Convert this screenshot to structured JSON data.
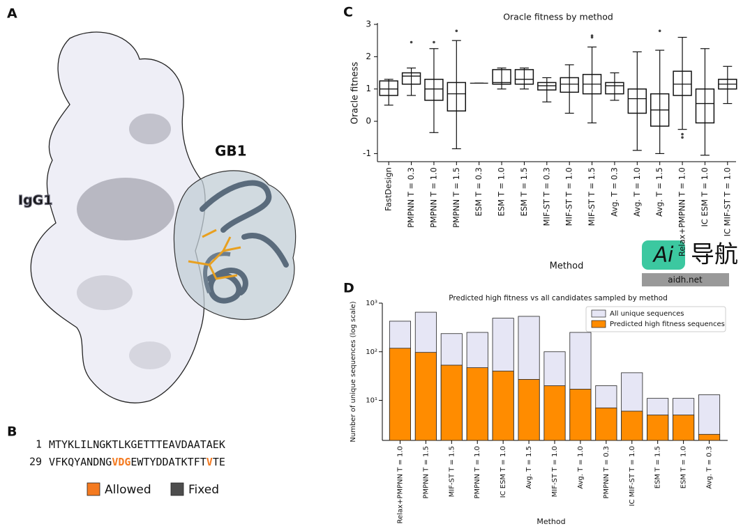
{
  "panel_letters": [
    "A",
    "B",
    "C",
    "D"
  ],
  "panel_a": {
    "labels": [
      "IgG1",
      "GB1"
    ]
  },
  "panel_b": {
    "lines": [
      {
        "number": 1,
        "segments": [
          {
            "text": "MTYKLILNGKTLKGETTTEAVDAATAEK",
            "allowed": false
          }
        ]
      },
      {
        "number": 29,
        "segments": [
          {
            "text": "VFKQYANDNG",
            "allowed": false
          },
          {
            "text": "VDG",
            "allowed": true
          },
          {
            "text": "EWTYDDATKTFT",
            "allowed": false
          },
          {
            "text": "V",
            "allowed": true
          },
          {
            "text": "TE",
            "allowed": false
          }
        ]
      }
    ],
    "legend": [
      {
        "name": "Allowed",
        "color": "#f47a20"
      },
      {
        "name": "Fixed",
        "color": "#4d4d4d"
      }
    ]
  },
  "watermark": {
    "logo": "Ai",
    "text": "导航",
    "url": "aidh.net"
  },
  "chart_data": [
    {
      "type": "box",
      "title": "Oracle fitness by method",
      "xlabel": "Method",
      "ylabel": "Oracle fitness",
      "categories": [
        "FastDesign",
        "PMPNN T = 0.3",
        "PMPNN T = 1.0",
        "PMPNN T = 1.5",
        "ESM T = 0.3",
        "ESM T = 1.0",
        "ESM T = 1.5",
        "MIF-ST T = 0.3",
        "MIF-ST T = 1.0",
        "MIF-ST T = 1.5",
        "Avg. T = 0.3",
        "Avg. T = 1.0",
        "Avg. T = 1.5",
        "Relax+PMPNN T = 1.0",
        "IC ESM T = 1.0",
        "IC MIF-ST T = 1.0"
      ],
      "boxes": [
        {
          "min": 0.5,
          "q1": 0.8,
          "median": 1.0,
          "q3": 1.25,
          "max": 1.3,
          "outliers": []
        },
        {
          "min": 0.8,
          "q1": 1.15,
          "median": 1.4,
          "q3": 1.5,
          "max": 1.65,
          "outliers": [
            2.45
          ]
        },
        {
          "min": -0.35,
          "q1": 0.65,
          "median": 1.0,
          "q3": 1.3,
          "max": 2.25,
          "outliers": [
            2.45
          ]
        },
        {
          "min": -0.85,
          "q1": 0.32,
          "median": 0.85,
          "q3": 1.2,
          "max": 2.5,
          "outliers": [
            2.8
          ]
        },
        {
          "min": 1.18,
          "q1": 1.18,
          "median": 1.18,
          "q3": 1.18,
          "max": 1.18,
          "outliers": []
        },
        {
          "min": 1.0,
          "q1": 1.15,
          "median": 1.2,
          "q3": 1.6,
          "max": 1.65,
          "outliers": []
        },
        {
          "min": 1.0,
          "q1": 1.15,
          "median": 1.3,
          "q3": 1.6,
          "max": 1.65,
          "outliers": []
        },
        {
          "min": 0.6,
          "q1": 0.97,
          "median": 1.1,
          "q3": 1.2,
          "max": 1.35,
          "outliers": []
        },
        {
          "min": 0.25,
          "q1": 0.9,
          "median": 1.15,
          "q3": 1.35,
          "max": 1.75,
          "outliers": []
        },
        {
          "min": -0.05,
          "q1": 0.85,
          "median": 1.15,
          "q3": 1.45,
          "max": 2.3,
          "outliers": [
            2.6,
            2.65
          ]
        },
        {
          "min": 0.65,
          "q1": 0.85,
          "median": 1.1,
          "q3": 1.2,
          "max": 1.5,
          "outliers": []
        },
        {
          "min": -0.9,
          "q1": 0.25,
          "median": 0.7,
          "q3": 1.0,
          "max": 2.15,
          "outliers": []
        },
        {
          "min": -1.0,
          "q1": -0.15,
          "median": 0.35,
          "q3": 0.85,
          "max": 2.2,
          "outliers": [
            2.8
          ]
        },
        {
          "min": -0.25,
          "q1": 0.8,
          "median": 1.15,
          "q3": 1.55,
          "max": 2.6,
          "outliers": [
            -0.4,
            -0.5
          ]
        },
        {
          "min": -1.05,
          "q1": -0.05,
          "median": 0.55,
          "q3": 1.0,
          "max": 2.25,
          "outliers": []
        },
        {
          "min": 0.55,
          "q1": 1.0,
          "median": 1.15,
          "q3": 1.3,
          "max": 1.7,
          "outliers": []
        }
      ],
      "color": "#111111",
      "ylim": [
        -1.25,
        3
      ],
      "yticks": [
        -1,
        0,
        1,
        2,
        3
      ]
    },
    {
      "type": "bar",
      "title": "Predicted high fitness vs all candidates sampled by method",
      "xlabel": "Method",
      "ylabel": "Number of unique sequences (log scale)",
      "categories": [
        "Relax+PMPNN T = 1.0",
        "PMPNN T = 1.5",
        "MIF-ST T = 1.5",
        "PMPNN T = 1.0",
        "IC ESM T = 1.0",
        "Avg. T = 1.5",
        "MIF-ST T = 1.0",
        "Avg. T = 1.0",
        "PMPNN T = 0.3",
        "IC MIF-ST T = 1.0",
        "ESM T = 1.5",
        "ESM T = 1.0",
        "Avg. T = 0.3"
      ],
      "series": [
        {
          "name": "All unique sequences",
          "color": "#e6e6f5",
          "values": [
            425,
            650,
            236,
            250,
            490,
            535,
            100,
            250,
            20,
            37,
            11,
            11,
            13
          ]
        },
        {
          "name": "Predicted high fitness sequences",
          "color": "#ff8c00",
          "values": [
            118,
            97,
            53,
            47,
            40,
            27,
            20,
            17,
            7,
            6,
            5,
            5,
            2
          ]
        }
      ],
      "log_scale": true,
      "legend": "upper right",
      "ylim": [
        1.5,
        1000
      ],
      "yticks": [
        {
          "value": 10,
          "label": "10¹"
        },
        {
          "value": 100,
          "label": "10²"
        },
        {
          "value": 1000,
          "label": "10³"
        }
      ]
    }
  ]
}
